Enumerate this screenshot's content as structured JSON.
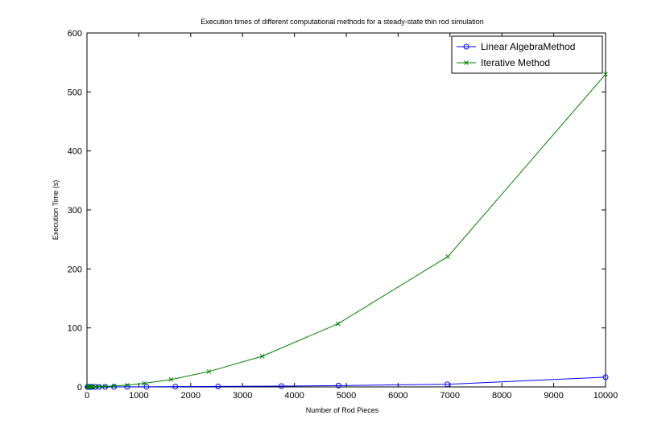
{
  "chart_data": {
    "type": "line",
    "title": "Execution times of different computational methods for a steady-state thin rod simulation",
    "xlabel": "Number of Rod Pieces",
    "ylabel": "Execution Time (s)",
    "xlim": [
      0,
      10000
    ],
    "ylim": [
      0,
      600
    ],
    "xticks": [
      0,
      1000,
      2000,
      3000,
      4000,
      5000,
      6000,
      7000,
      8000,
      9000,
      10000
    ],
    "yticks": [
      0,
      100,
      200,
      300,
      400,
      500,
      600
    ],
    "grid": false,
    "legend_position": "top-right",
    "series": [
      {
        "name": "Linear AlgebraMethod",
        "color": "#0000ff",
        "marker": "circle",
        "x": [
          10,
          15,
          22,
          33,
          49,
          73,
          108,
          160,
          237,
          352,
          522,
          775,
          1149,
          1704,
          2528,
          3750,
          4850,
          6950,
          10000
        ],
        "y": [
          0.001,
          0.001,
          0.001,
          0.002,
          0.003,
          0.005,
          0.008,
          0.012,
          0.02,
          0.04,
          0.07,
          0.12,
          0.25,
          0.45,
          0.8,
          1.4,
          2.2,
          4.5,
          16.5
        ]
      },
      {
        "name": "Iterative Method",
        "color": "#008000",
        "marker": "x",
        "x": [
          10,
          15,
          22,
          33,
          49,
          73,
          108,
          160,
          237,
          352,
          522,
          775,
          1100,
          1620,
          2350,
          3380,
          4840,
          6960,
          10000
        ],
        "y": [
          0.01,
          0.02,
          0.03,
          0.05,
          0.08,
          0.12,
          0.2,
          0.35,
          0.6,
          0.9,
          1.5,
          3,
          6,
          12.5,
          26,
          52,
          107,
          221,
          530
        ]
      }
    ]
  }
}
